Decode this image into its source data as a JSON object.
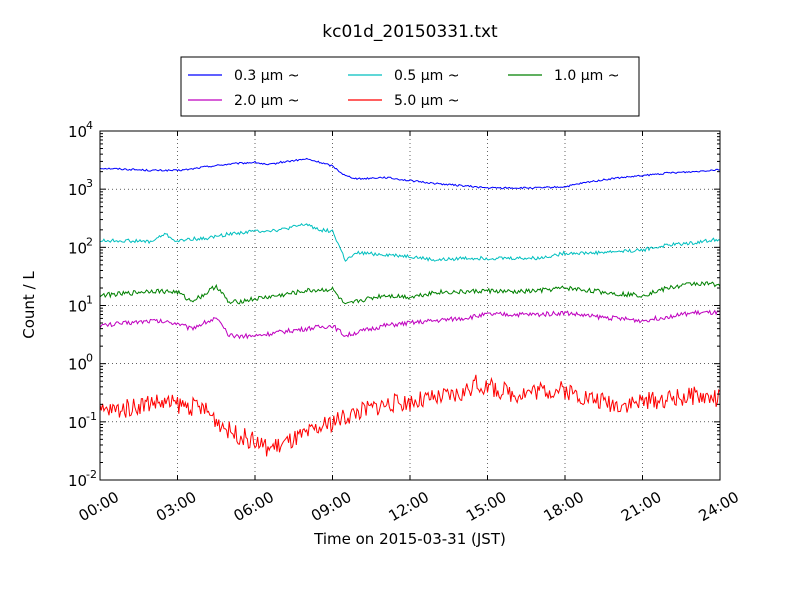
{
  "chart_data": {
    "type": "line",
    "title": "kc01d_20150331.txt",
    "xlabel": "Time on 2015-03-31 (JST)",
    "ylabel": "Count / L",
    "yscale": "log",
    "ylim": [
      0.01,
      10000
    ],
    "xlim": [
      "00:00",
      "24:00"
    ],
    "x_tick_labels": [
      "00:00",
      "03:00",
      "06:00",
      "09:00",
      "12:00",
      "15:00",
      "18:00",
      "21:00",
      "24:00"
    ],
    "y_tick_labels": [
      {
        "base": "10",
        "exp": "-2"
      },
      {
        "base": "10",
        "exp": "-1"
      },
      {
        "base": "10",
        "exp": "0"
      },
      {
        "base": "10",
        "exp": "1"
      },
      {
        "base": "10",
        "exp": "2"
      },
      {
        "base": "10",
        "exp": "3"
      },
      {
        "base": "10",
        "exp": "4"
      }
    ],
    "grid": true,
    "legend_position": "top-center",
    "series": [
      {
        "name": "0.3 μm ~",
        "color": "#0000ff",
        "x": [
          "00:00",
          "01:00",
          "02:00",
          "03:00",
          "03:30",
          "04:00",
          "05:00",
          "06:00",
          "06:30",
          "07:00",
          "08:00",
          "08:30",
          "09:00",
          "09:30",
          "10:00",
          "11:00",
          "12:00",
          "13:00",
          "14:00",
          "15:00",
          "16:00",
          "17:00",
          "18:00",
          "19:00",
          "20:00",
          "21:00",
          "22:00",
          "23:00",
          "24:00"
        ],
        "y": [
          2300,
          2200,
          2100,
          2100,
          2200,
          2400,
          2700,
          2900,
          2600,
          2900,
          3300,
          2900,
          2500,
          1700,
          1500,
          1600,
          1400,
          1250,
          1150,
          1050,
          1050,
          1050,
          1100,
          1350,
          1550,
          1700,
          1900,
          2000,
          2200
        ]
      },
      {
        "name": "0.5 μm ~",
        "color": "#00bfbf",
        "x": [
          "00:00",
          "01:00",
          "02:00",
          "02:30",
          "03:00",
          "03:30",
          "04:00",
          "05:00",
          "06:00",
          "07:00",
          "08:00",
          "08:30",
          "09:00",
          "09:30",
          "10:00",
          "11:00",
          "12:00",
          "13:00",
          "14:00",
          "15:00",
          "16:00",
          "17:00",
          "18:00",
          "19:00",
          "20:00",
          "21:00",
          "22:00",
          "23:00",
          "24:00"
        ],
        "y": [
          130,
          130,
          125,
          170,
          125,
          140,
          140,
          170,
          190,
          200,
          250,
          200,
          190,
          60,
          80,
          75,
          70,
          60,
          65,
          65,
          65,
          65,
          80,
          80,
          85,
          90,
          110,
          120,
          140
        ]
      },
      {
        "name": "1.0 μm ~",
        "color": "#008000",
        "x": [
          "00:00",
          "01:00",
          "02:00",
          "03:00",
          "03:30",
          "04:00",
          "04:30",
          "05:00",
          "06:00",
          "07:00",
          "08:00",
          "09:00",
          "09:30",
          "10:00",
          "11:00",
          "12:00",
          "13:00",
          "14:00",
          "15:00",
          "16:00",
          "17:00",
          "18:00",
          "19:00",
          "20:00",
          "21:00",
          "22:00",
          "23:00",
          "24:00"
        ],
        "y": [
          15,
          16,
          18,
          17,
          12,
          15,
          22,
          11,
          13,
          15,
          18,
          19,
          10,
          12,
          15,
          14,
          17,
          17,
          18,
          17,
          18,
          20,
          18,
          16,
          15,
          20,
          24,
          23
        ]
      },
      {
        "name": "2.0 μm ~",
        "color": "#bf00bf",
        "x": [
          "00:00",
          "01:00",
          "02:00",
          "03:00",
          "03:30",
          "04:00",
          "04:30",
          "05:00",
          "06:00",
          "07:00",
          "08:00",
          "09:00",
          "09:30",
          "10:00",
          "11:00",
          "12:00",
          "13:00",
          "14:00",
          "15:00",
          "16:00",
          "17:00",
          "18:00",
          "19:00",
          "20:00",
          "21:00",
          "22:00",
          "23:00",
          "24:00"
        ],
        "y": [
          4.5,
          5,
          5.5,
          5,
          4,
          5,
          6,
          3,
          3,
          3.5,
          4,
          4.5,
          3,
          3.5,
          4.5,
          5,
          5.5,
          6,
          7,
          7,
          7,
          7.5,
          6.5,
          6,
          5.5,
          6.5,
          7.5,
          7.5
        ]
      },
      {
        "name": "5.0 μm ~",
        "color": "#ff0000",
        "x": [
          "00:00",
          "01:00",
          "02:00",
          "03:00",
          "04:00",
          "05:00",
          "06:00",
          "06:30",
          "07:00",
          "08:00",
          "09:00",
          "10:00",
          "11:00",
          "12:00",
          "13:00",
          "14:00",
          "14:30",
          "15:00",
          "16:00",
          "17:00",
          "18:00",
          "19:00",
          "20:00",
          "21:00",
          "22:00",
          "23:00",
          "24:00"
        ],
        "y": [
          0.15,
          0.17,
          0.22,
          0.2,
          0.17,
          0.07,
          0.045,
          0.035,
          0.04,
          0.06,
          0.1,
          0.15,
          0.2,
          0.22,
          0.25,
          0.3,
          0.45,
          0.4,
          0.3,
          0.35,
          0.35,
          0.25,
          0.2,
          0.22,
          0.25,
          0.28,
          0.25
        ]
      }
    ]
  }
}
